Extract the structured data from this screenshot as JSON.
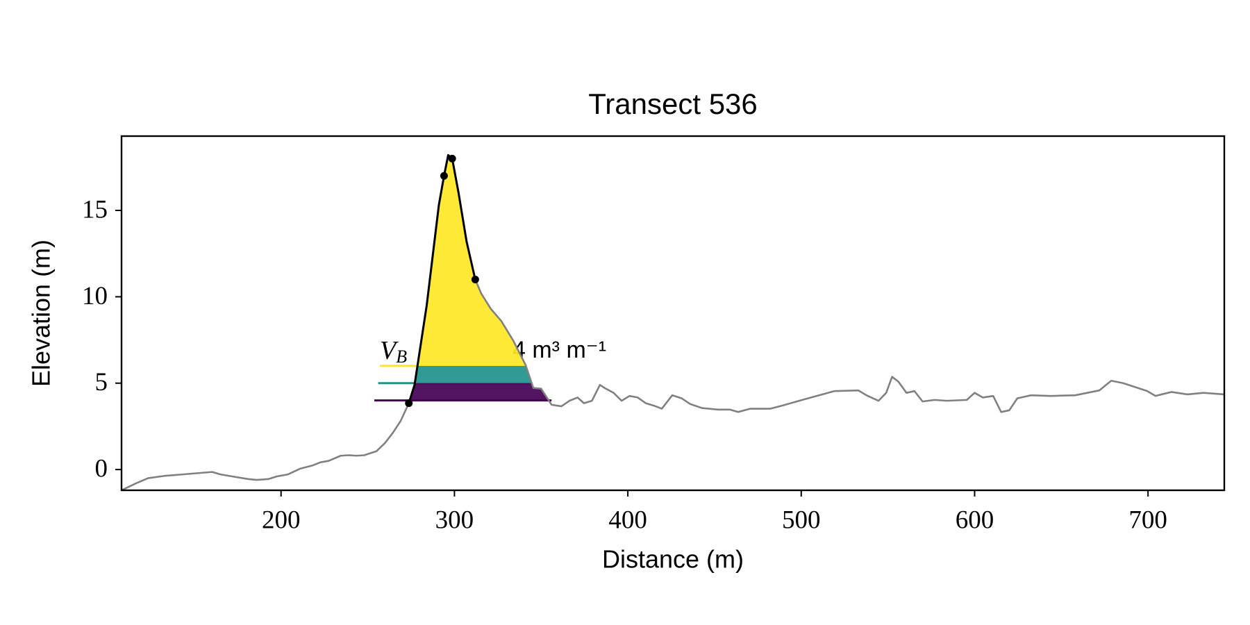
{
  "chart_data": {
    "type": "line",
    "title": "Transect 536",
    "xlabel": "Distance (m)",
    "ylabel": "Elevation (m)",
    "xlim": [
      108,
      744
    ],
    "ylim": [
      -1.2,
      19.3
    ],
    "xticks": [
      200,
      300,
      400,
      500,
      600,
      700
    ],
    "yticks": [
      0,
      5,
      10,
      15
    ],
    "series": [
      {
        "color": "#808080",
        "x": [
          108,
          116.3,
          123.3,
          132.5,
          160.3,
          165,
          172,
          181,
          186,
          192.7,
          197.4,
          204,
          211,
          218,
          222.8,
          227.4,
          234.4,
          239,
          243.6,
          248,
          255,
          259.9,
          264.5,
          269,
          273.7,
          277,
          284,
          291,
          294,
          296.4,
          298.7,
          302.4,
          307,
          312,
          315.4,
          321,
          327,
          334,
          341,
          345.5,
          350,
          356,
          361.7,
          366.3,
          371,
          374.7,
          379.3,
          383.9,
          387,
          391.8,
          396.4,
          401,
          405.7,
          410.3,
          415,
          419.6,
          425.6,
          431.1,
          435.8,
          442.7,
          452,
          459,
          463.6,
          470.5,
          482,
          489,
          500.6,
          519,
          533,
          537.6,
          544.6,
          549,
          552.4,
          556,
          560.7,
          565.3,
          570,
          576.9,
          583.9,
          595.5,
          600,
          604.7,
          610.7,
          615.3,
          620,
          624.6,
          632.5,
          644,
          658,
          671.9,
          678.8,
          685.7,
          699.6,
          704.3,
          713.5,
          722.8,
          732,
          744
        ],
        "y": [
          -1.2,
          -0.8,
          -0.5,
          -0.37,
          -0.14,
          -0.28,
          -0.4,
          -0.55,
          -0.6,
          -0.55,
          -0.4,
          -0.28,
          0.05,
          0.23,
          0.42,
          0.5,
          0.8,
          0.83,
          0.8,
          0.83,
          1.06,
          1.53,
          2.13,
          2.82,
          3.84,
          4.9,
          9.5,
          15.3,
          17,
          18.2,
          18,
          16,
          13.2,
          11,
          10.2,
          9.3,
          8.6,
          7.45,
          6.06,
          4.72,
          4.68,
          3.75,
          3.66,
          3.98,
          4.17,
          3.84,
          3.98,
          4.9,
          4.7,
          4.44,
          3.98,
          4.26,
          4.17,
          3.84,
          3.7,
          3.52,
          4.3,
          4.12,
          3.8,
          3.56,
          3.47,
          3.47,
          3.33,
          3.52,
          3.52,
          3.7,
          4.03,
          4.54,
          4.58,
          4.3,
          3.98,
          4.44,
          5.37,
          5.09,
          4.44,
          4.54,
          3.94,
          4.03,
          3.98,
          4.03,
          4.44,
          4.17,
          4.26,
          3.33,
          3.43,
          4.12,
          4.3,
          4.26,
          4.3,
          4.58,
          5.14,
          5.0,
          4.54,
          4.26,
          4.49,
          4.35,
          4.44,
          4.35
        ]
      },
      {
        "color": "#000000",
        "x": [
          273.7,
          277,
          284,
          291,
          294,
          296.4,
          298.7,
          302.4,
          307,
          312
        ],
        "y": [
          3.84,
          4.9,
          9.5,
          15.3,
          17,
          18.2,
          18,
          16,
          13.2,
          11
        ]
      }
    ],
    "points": {
      "color": "#000000",
      "x": [
        273.7,
        294,
        298.7,
        312
      ],
      "y": [
        3.84,
        17,
        18,
        11
      ]
    },
    "levels": [
      {
        "color": "#440154",
        "y": 4,
        "x": [
          253.8,
          356
        ]
      },
      {
        "color": "#21918c",
        "y": 5,
        "x": [
          256,
          344.5
        ]
      },
      {
        "color": "#fde725",
        "y": 6,
        "x": [
          257,
          341
        ]
      }
    ],
    "annotation": {
      "left": "V",
      "left_sub": "B",
      "right": "4 m³ m⁻¹"
    }
  }
}
